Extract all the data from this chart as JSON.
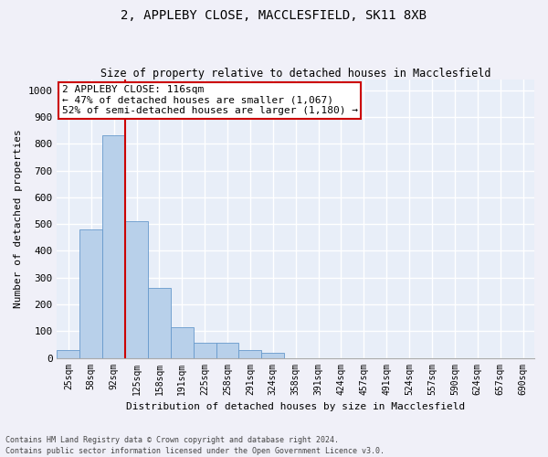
{
  "title_line1": "2, APPLEBY CLOSE, MACCLESFIELD, SK11 8XB",
  "title_line2": "Size of property relative to detached houses in Macclesfield",
  "xlabel": "Distribution of detached houses by size in Macclesfield",
  "ylabel": "Number of detached properties",
  "bar_color": "#b8d0ea",
  "bar_edge_color": "#6699cc",
  "background_color": "#e8eef8",
  "grid_color": "#ffffff",
  "fig_color": "#f0f0f8",
  "categories": [
    "25sqm",
    "58sqm",
    "92sqm",
    "125sqm",
    "158sqm",
    "191sqm",
    "225sqm",
    "258sqm",
    "291sqm",
    "324sqm",
    "358sqm",
    "391sqm",
    "424sqm",
    "457sqm",
    "491sqm",
    "524sqm",
    "557sqm",
    "590sqm",
    "624sqm",
    "657sqm",
    "690sqm"
  ],
  "values": [
    30,
    480,
    830,
    510,
    260,
    115,
    55,
    55,
    30,
    20,
    0,
    0,
    0,
    0,
    0,
    0,
    0,
    0,
    0,
    0,
    0
  ],
  "ylim": [
    0,
    1040
  ],
  "yticks": [
    0,
    100,
    200,
    300,
    400,
    500,
    600,
    700,
    800,
    900,
    1000
  ],
  "property_line_x": 2.5,
  "annotation_text": "2 APPLEBY CLOSE: 116sqm\n← 47% of detached houses are smaller (1,067)\n52% of semi-detached houses are larger (1,180) →",
  "annotation_box_color": "#ffffff",
  "annotation_box_edge": "#cc0000",
  "line_color": "#cc0000",
  "footnote1": "Contains HM Land Registry data © Crown copyright and database right 2024.",
  "footnote2": "Contains public sector information licensed under the Open Government Licence v3.0."
}
